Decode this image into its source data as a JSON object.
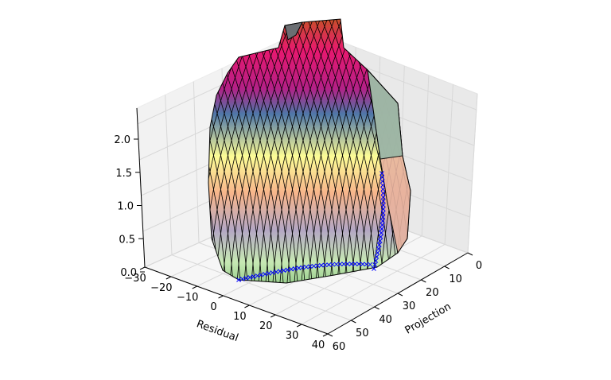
{
  "chart_data": {
    "type": "surface3d",
    "title": "",
    "xlabel": "Residual",
    "ylabel": "Projection",
    "zlabel": "",
    "x_ticks": [
      "−30",
      "−20",
      "−10",
      "0",
      "10",
      "20",
      "30",
      "40"
    ],
    "y_ticks": [
      "0",
      "10",
      "20",
      "30",
      "40",
      "50",
      "60"
    ],
    "z_ticks": [
      "0.0",
      "0.5",
      "1.0",
      "1.5",
      "2.0"
    ],
    "xlim": [
      -30,
      40
    ],
    "ylim": [
      0,
      60
    ],
    "zlim": [
      0,
      2.3
    ],
    "grid": true,
    "colormap": [
      "#c7e9b4",
      "#b4a7c4",
      "#f7b58b",
      "#fdfd96",
      "#4f77a8",
      "#b51f86",
      "#e8186f",
      "#c84f2a"
    ],
    "marker_series": {
      "name": "",
      "marker": "x",
      "color": "#0000ff"
    }
  }
}
